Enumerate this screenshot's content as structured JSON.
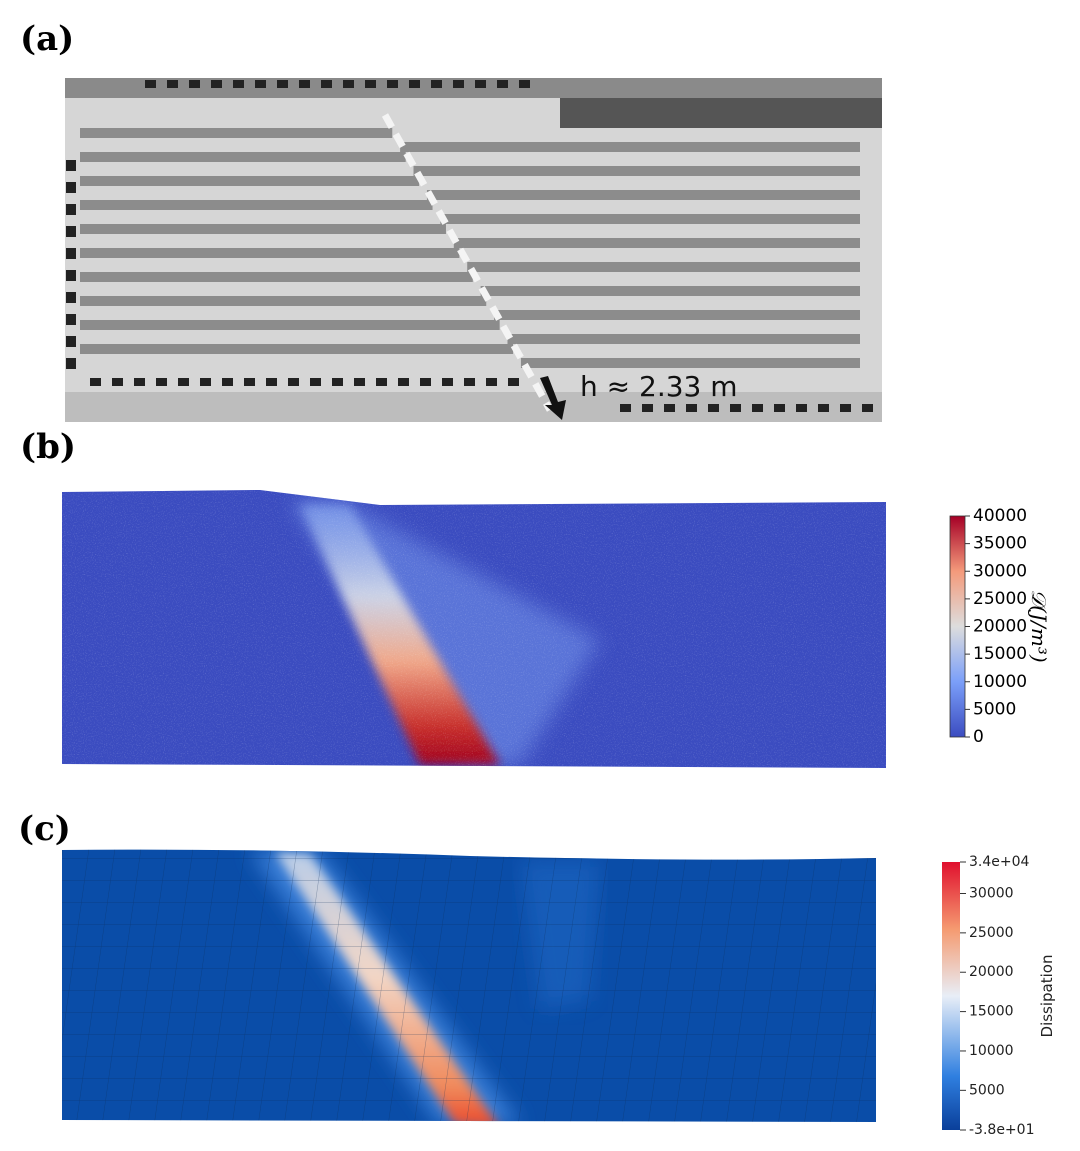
{
  "panels": [
    {
      "label": "(a)",
      "annotation": "h ≈ 2.33 m"
    },
    {
      "label": "(b)",
      "colorbar": {
        "title": "𝒟(J/m³)",
        "range": [
          0,
          40000
        ],
        "ticks": [
          0,
          5000,
          10000,
          15000,
          20000,
          25000,
          30000,
          35000,
          40000
        ]
      }
    },
    {
      "label": "(c)",
      "colorbar": {
        "title": "Dissipation",
        "range": [
          -38,
          34000
        ],
        "ticks": [
          {
            "value": 34000,
            "label": "3.4e+04"
          },
          30000,
          25000,
          20000,
          15000,
          10000,
          5000,
          {
            "value": -38,
            "label": "-3.8e+01"
          }
        ]
      }
    }
  ]
}
